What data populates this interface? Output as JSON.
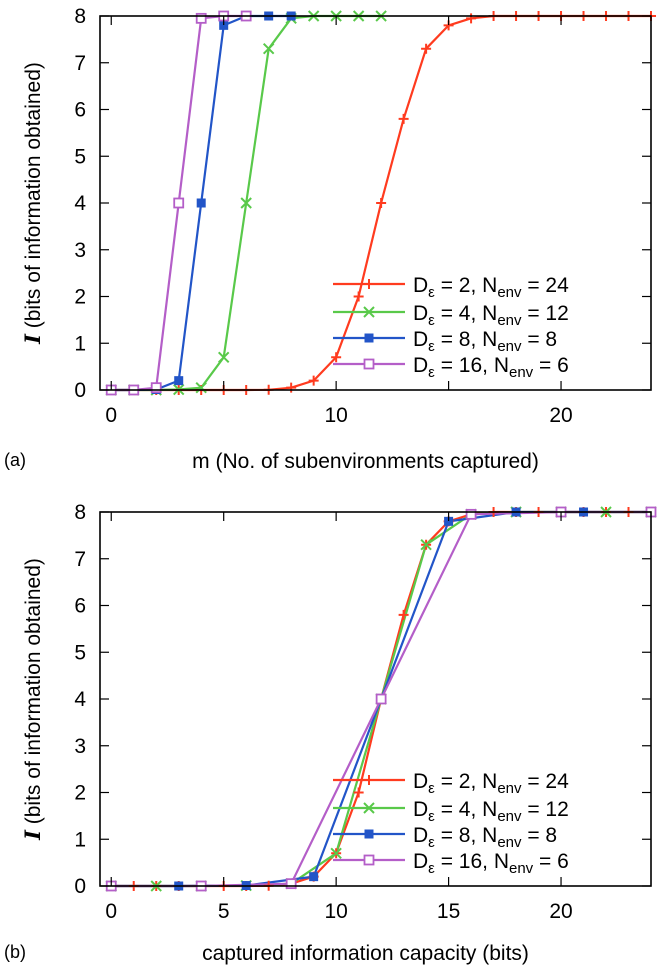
{
  "colors": {
    "red": "#ff3b1f",
    "green": "#59c94a",
    "blue": "#2255c8",
    "purple": "#b45ec8"
  },
  "chart_data": [
    {
      "type": "line",
      "panel_label": "(a)",
      "xlabel": "m (No. of subenvironments captured)",
      "ylabel": "I (bits of information obtained)",
      "xlim": [
        -0.5,
        24
      ],
      "ylim": [
        0,
        8
      ],
      "xticks": [
        0,
        10,
        20
      ],
      "xtick_labels": [
        "0",
        "10",
        "20"
      ],
      "xticks_minor": [
        5,
        15
      ],
      "xtick_minor_labels": [
        "",
        ""
      ],
      "yticks": [
        0,
        1,
        2,
        3,
        4,
        5,
        6,
        7,
        8
      ],
      "ytick_labels": [
        "0",
        "1",
        "2",
        "3",
        "4",
        "5",
        "6",
        "7",
        "8"
      ],
      "legend_position": "bottom-right",
      "series": [
        {
          "name": "Dε =  2, Nenv = 24",
          "legend": {
            "pre": "D",
            "sub1": "ε",
            "mid": " =  2, N",
            "sub2": "env",
            "post": " = 24"
          },
          "color": "#ff3b1f",
          "marker": "plus",
          "x": [
            0,
            1,
            2,
            3,
            4,
            5,
            6,
            7,
            8,
            9,
            10,
            11,
            12,
            13,
            14,
            15,
            16,
            17,
            18,
            19,
            20,
            21,
            22,
            23,
            24
          ],
          "y": [
            0,
            0,
            0,
            0,
            0,
            0,
            0,
            0.005,
            0.05,
            0.2,
            0.7,
            2.0,
            4.0,
            5.8,
            7.3,
            7.8,
            7.95,
            8,
            8,
            8,
            8,
            8,
            8,
            8,
            8
          ]
        },
        {
          "name": "Dε =  4, Nenv = 12",
          "legend": {
            "pre": "D",
            "sub1": "ε",
            "mid": " =  4, N",
            "sub2": "env",
            "post": " = 12"
          },
          "color": "#59c94a",
          "marker": "x",
          "x": [
            0,
            1,
            2,
            3,
            4,
            5,
            6,
            7,
            8,
            9,
            10,
            11,
            12
          ],
          "y": [
            0,
            0,
            0,
            0.01,
            0.05,
            0.7,
            4.0,
            7.3,
            7.95,
            8,
            8,
            8,
            8
          ]
        },
        {
          "name": "Dε =  8, Nenv =  8",
          "legend": {
            "pre": "D",
            "sub1": "ε",
            "mid": " =  8, N",
            "sub2": "env",
            "post": " =  8"
          },
          "color": "#2255c8",
          "marker": "filled-square",
          "x": [
            0,
            1,
            2,
            3,
            4,
            5,
            6,
            7,
            8
          ],
          "y": [
            0,
            0,
            0.01,
            0.2,
            4.0,
            7.8,
            8,
            8,
            8
          ]
        },
        {
          "name": "Dε = 16, Nenv =  6",
          "legend": {
            "pre": "D",
            "sub1": "ε",
            "mid": " = 16, N",
            "sub2": "env",
            "post": " =  6"
          },
          "color": "#b45ec8",
          "marker": "open-square",
          "x": [
            0,
            1,
            2,
            3,
            4,
            5,
            6
          ],
          "y": [
            0,
            0,
            0.05,
            4.0,
            7.95,
            8,
            8
          ]
        }
      ]
    },
    {
      "type": "line",
      "panel_label": "(b)",
      "xlabel": "captured information capacity (bits)",
      "ylabel": "I (bits of information obtained)",
      "xlim": [
        -0.5,
        24
      ],
      "ylim": [
        0,
        8
      ],
      "xticks": [
        0,
        5,
        10,
        15,
        20
      ],
      "xtick_labels": [
        "0",
        "5",
        "10",
        "15",
        "20"
      ],
      "xticks_minor": [],
      "xtick_minor_labels": [],
      "yticks": [
        0,
        1,
        2,
        3,
        4,
        5,
        6,
        7,
        8
      ],
      "ytick_labels": [
        "0",
        "1",
        "2",
        "3",
        "4",
        "5",
        "6",
        "7",
        "8"
      ],
      "legend_position": "bottom-right",
      "series": [
        {
          "name": "Dε =  2, Nenv = 24",
          "legend": {
            "pre": "D",
            "sub1": "ε",
            "mid": " =  2, N",
            "sub2": "env",
            "post": " = 24"
          },
          "color": "#ff3b1f",
          "marker": "plus",
          "x": [
            0,
            1,
            2,
            3,
            4,
            5,
            6,
            7,
            8,
            9,
            10,
            11,
            12,
            13,
            14,
            15,
            16,
            17,
            18,
            19,
            20,
            21,
            22,
            23,
            24
          ],
          "y": [
            0,
            0,
            0,
            0,
            0,
            0,
            0,
            0.005,
            0.05,
            0.2,
            0.7,
            2.0,
            4.0,
            5.8,
            7.3,
            7.8,
            7.95,
            8,
            8,
            8,
            8,
            8,
            8,
            8,
            8
          ]
        },
        {
          "name": "Dε =  4, Nenv = 12",
          "legend": {
            "pre": "D",
            "sub1": "ε",
            "mid": " =  4, N",
            "sub2": "env",
            "post": " = 12"
          },
          "color": "#59c94a",
          "marker": "x",
          "x": [
            0,
            2,
            4,
            6,
            8,
            10,
            12,
            14,
            16,
            18,
            20,
            22,
            24
          ],
          "y": [
            0,
            0,
            0,
            0.01,
            0.05,
            0.7,
            4.0,
            7.3,
            7.95,
            8,
            8,
            8,
            8
          ]
        },
        {
          "name": "Dε =  8, Nenv =  8",
          "legend": {
            "pre": "D",
            "sub1": "ε",
            "mid": " =  8, N",
            "sub2": "env",
            "post": " =  8"
          },
          "color": "#2255c8",
          "marker": "filled-square",
          "x": [
            0,
            3,
            6,
            9,
            12,
            15,
            18,
            21,
            24
          ],
          "y": [
            0,
            0,
            0.01,
            0.2,
            4.0,
            7.8,
            8,
            8,
            8
          ]
        },
        {
          "name": "Dε = 16, Nenv =  6",
          "legend": {
            "pre": "D",
            "sub1": "ε",
            "mid": " = 16, N",
            "sub2": "env",
            "post": " =  6"
          },
          "color": "#b45ec8",
          "marker": "open-square",
          "x": [
            0,
            4,
            8,
            12,
            16,
            20,
            24
          ],
          "y": [
            0,
            0,
            0.05,
            4.0,
            7.95,
            8,
            8
          ]
        }
      ]
    }
  ]
}
